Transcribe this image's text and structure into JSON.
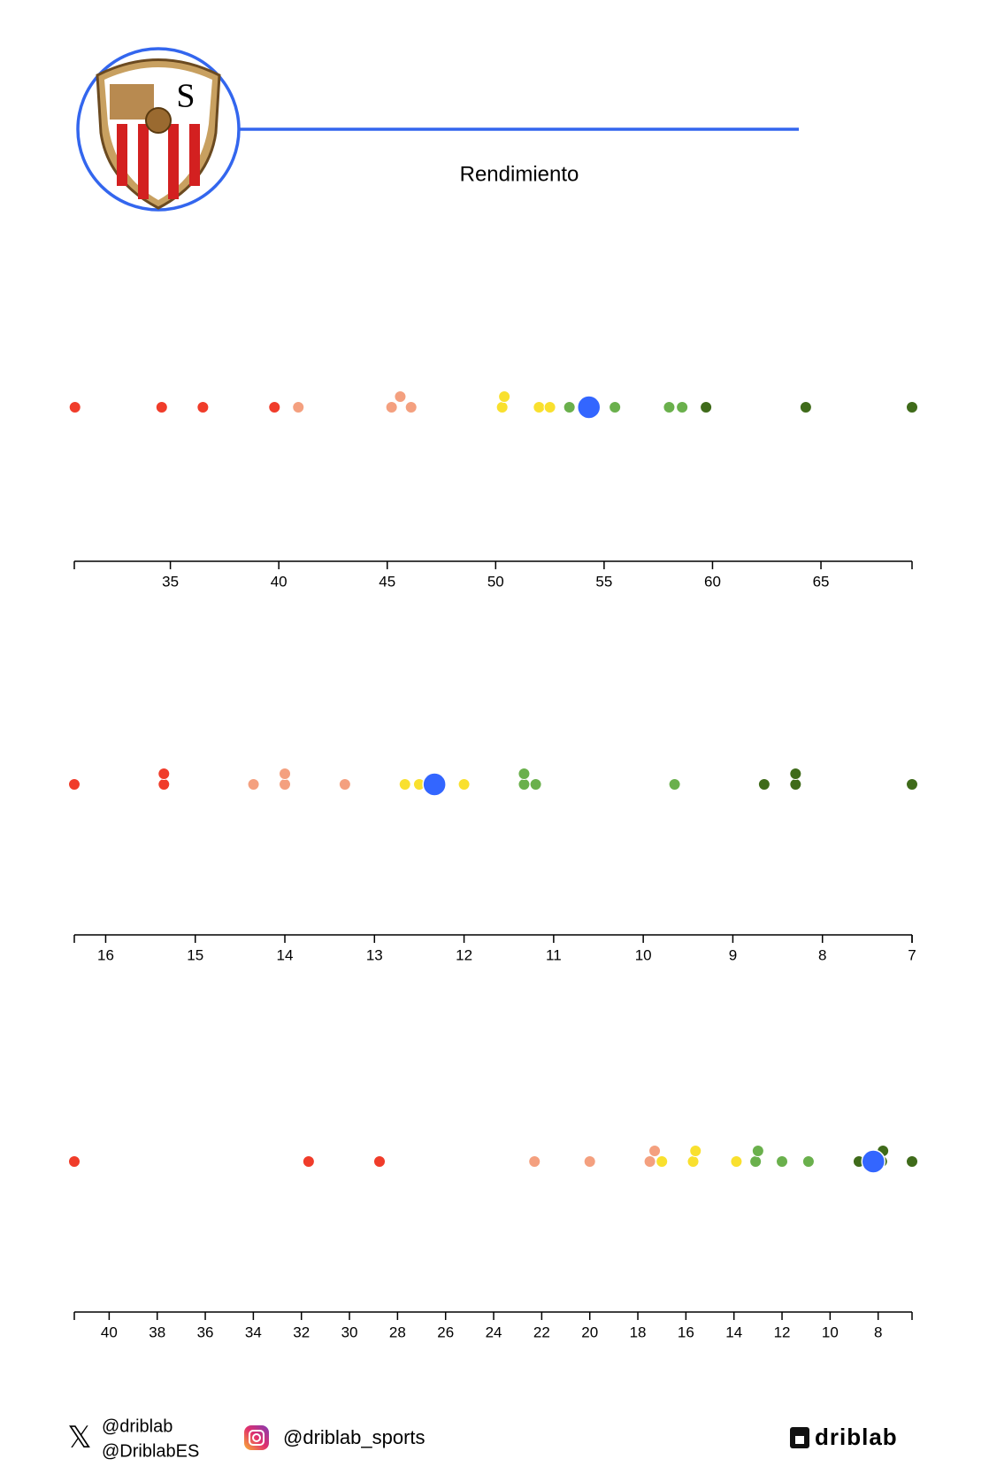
{
  "title": "Rendimiento",
  "footer": {
    "x_handles": [
      "@driblab",
      "@DriblabES"
    ],
    "instagram": "@driblab_sports",
    "brand": "driblab"
  },
  "chart_data": [
    {
      "type": "strip",
      "xlim": [
        30.57,
        69.2
      ],
      "xticks": [
        35,
        40,
        45,
        50,
        55,
        60,
        65
      ],
      "values": [
        30.6,
        34.6,
        36.5,
        39.8,
        40.9,
        45.2,
        45.6,
        46.1,
        50.3,
        50.4,
        52.0,
        52.5,
        53.4,
        55.5,
        58.0,
        58.6,
        59.7,
        64.3,
        69.2
      ],
      "colors": [
        "#f03c2a",
        "#f03c2a",
        "#f03c2a",
        "#f03c2a",
        "#f4a07f",
        "#f4a07f",
        "#f4a07f",
        "#f4a07f",
        "#f9e02e",
        "#f9e02e",
        "#f9e02e",
        "#f9e02e",
        "#6ab04c",
        "#6ab04c",
        "#6ab04c",
        "#6ab04c",
        "#3f6b1a",
        "#3f6b1a",
        "#3f6b1a"
      ],
      "highlight": {
        "value": 54.3,
        "color": "#3366ff"
      }
    },
    {
      "type": "strip",
      "xlim": [
        16.35,
        7
      ],
      "xticks": [
        16,
        15,
        14,
        13,
        12,
        11,
        10,
        9,
        8,
        7
      ],
      "values": [
        16.35,
        15.35,
        15.35,
        14.35,
        14.0,
        14.0,
        13.33,
        12.66,
        12.5,
        12.33,
        12.0,
        11.33,
        11.33,
        11.2,
        9.65,
        8.65,
        8.3,
        8.3,
        7
      ],
      "colors": [
        "#f03c2a",
        "#f03c2a",
        "#f03c2a",
        "#f4a07f",
        "#f4a07f",
        "#f4a07f",
        "#f4a07f",
        "#f9e02e",
        "#f9e02e",
        "#f9e02e",
        "#f9e02e",
        "#6ab04c",
        "#6ab04c",
        "#6ab04c",
        "#6ab04c",
        "#3f6b1a",
        "#3f6b1a",
        "#3f6b1a",
        "#3f6b1a"
      ],
      "highlight": {
        "value": 12.33,
        "color": "#3366ff"
      }
    },
    {
      "type": "strip",
      "xlim": [
        41.45,
        6.59
      ],
      "xticks": [
        40,
        38,
        36,
        34,
        32,
        30,
        28,
        26,
        24,
        22,
        20,
        18,
        16,
        14,
        12,
        10,
        8
      ],
      "values": [
        41.45,
        31.7,
        28.75,
        22.3,
        20.0,
        17.5,
        17.3,
        17.0,
        15.7,
        15.6,
        13.9,
        13.1,
        13.0,
        12.0,
        10.9,
        8.8,
        7.85,
        7.8,
        6.59
      ],
      "colors": [
        "#f03c2a",
        "#f03c2a",
        "#f03c2a",
        "#f4a07f",
        "#f4a07f",
        "#f4a07f",
        "#f4a07f",
        "#f9e02e",
        "#f9e02e",
        "#f9e02e",
        "#f9e02e",
        "#6ab04c",
        "#6ab04c",
        "#6ab04c",
        "#6ab04c",
        "#3f6b1a",
        "#3f6b1a",
        "#3f6b1a",
        "#3f6b1a"
      ],
      "highlight": {
        "value": 8.2,
        "color": "#3366ff"
      }
    }
  ]
}
